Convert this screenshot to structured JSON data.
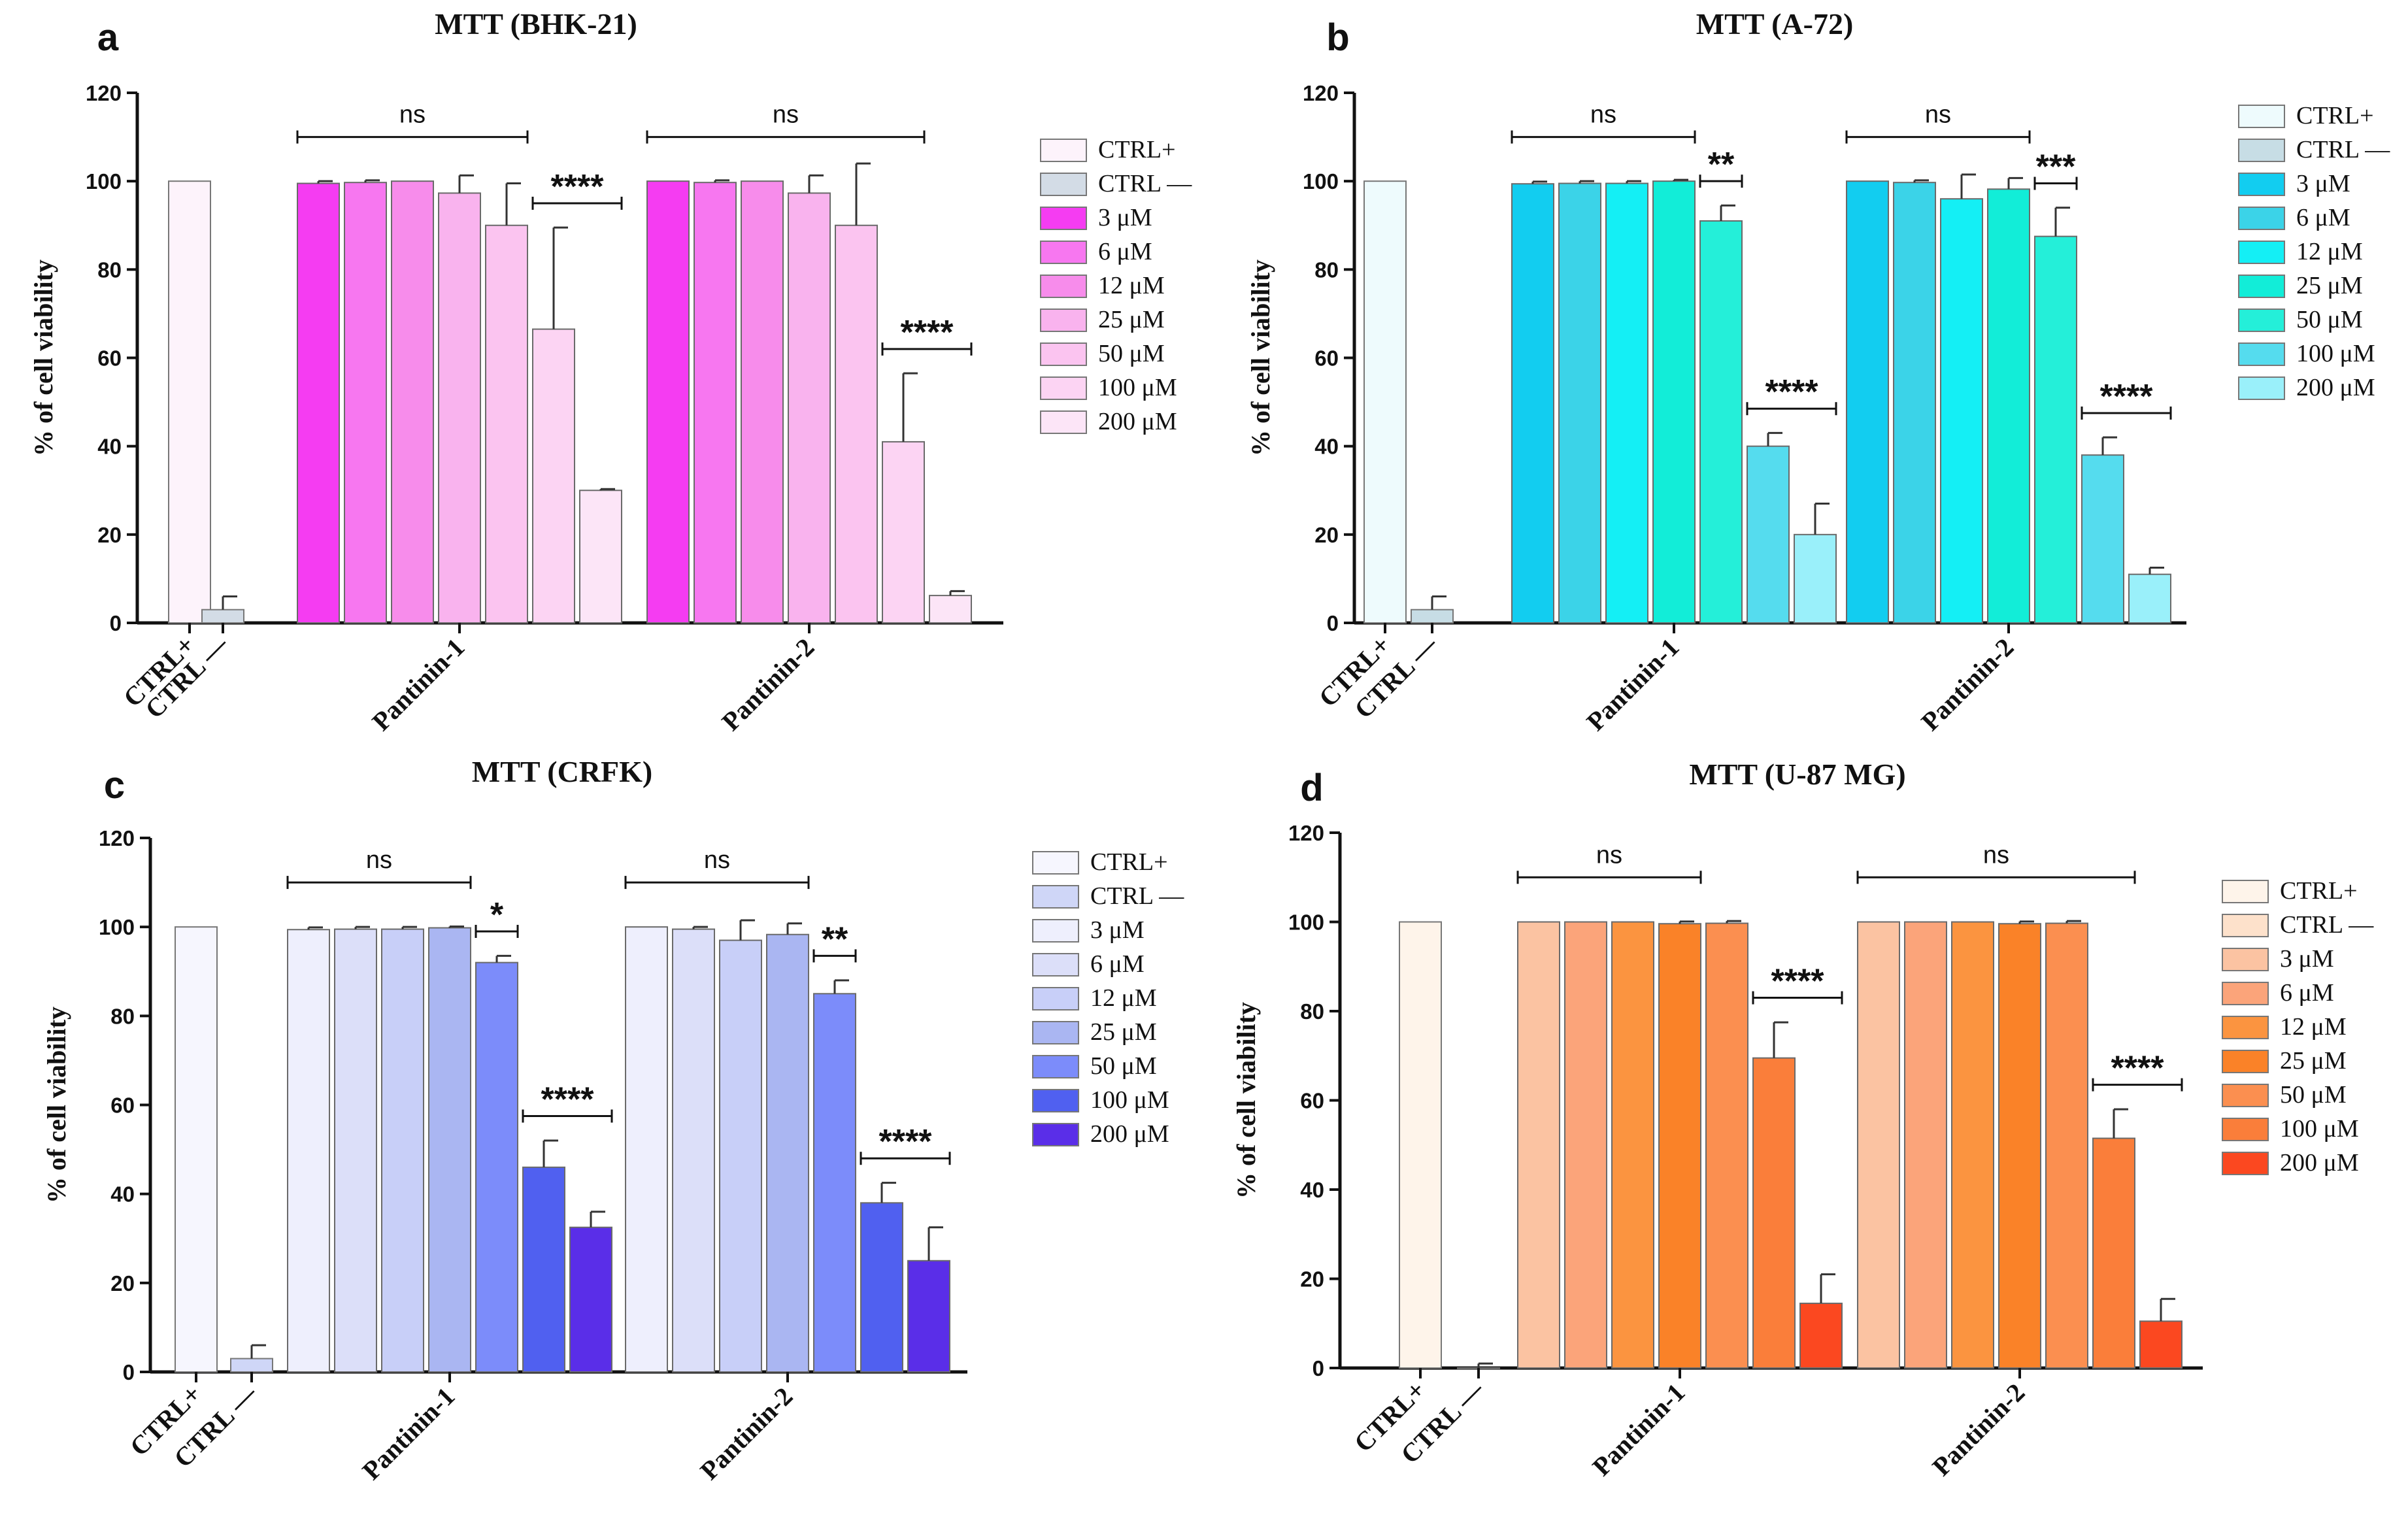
{
  "chart_data": [
    {
      "panel": "a",
      "type": "bar",
      "title": "MTT (BHK-21)",
      "ylabel": "% of cell viability",
      "ylim": [
        0,
        120
      ],
      "yticks": [
        0,
        20,
        40,
        60,
        80,
        100,
        120
      ],
      "controls": [
        {
          "name": "CTRL+",
          "value": 100,
          "error": 0
        },
        {
          "name": "CTRL —",
          "value": 3,
          "error": 3
        }
      ],
      "groups": [
        {
          "name": "Pantinin-1",
          "values": [
            99.5,
            99.7,
            100,
            97.3,
            90,
            66.5,
            30
          ],
          "errors": [
            0.5,
            0.5,
            0,
            4,
            9.5,
            23,
            0.3
          ]
        },
        {
          "name": "Pantinin-2",
          "values": [
            100,
            99.7,
            100,
            97.3,
            90,
            41,
            6.2
          ],
          "errors": [
            0,
            0.5,
            0,
            4,
            14,
            15.5,
            1
          ]
        }
      ],
      "legend": [
        "CTRL+",
        "CTRL —",
        "3 μM",
        "6 μM",
        "12 μM",
        "25 μM",
        "50 μM",
        "100 μM",
        "200 μM"
      ],
      "colors": [
        "#fdf3fb",
        "#d3dce6",
        "#f53cf2",
        "#f777f0",
        "#f78ceb",
        "#f9b3ee",
        "#fbc4f0",
        "#fcd4f3",
        "#fce5f7"
      ],
      "annotations": [
        {
          "text": "ns",
          "group": 0,
          "from": 0,
          "to": 4
        },
        {
          "text": "****",
          "group": 0,
          "from": 5,
          "to": 6
        },
        {
          "text": "ns",
          "group": 1,
          "from": 0,
          "to": 5
        },
        {
          "text": "****",
          "group": 1,
          "from": 5,
          "to": 6
        }
      ]
    },
    {
      "panel": "b",
      "type": "bar",
      "title": "MTT (A-72)",
      "ylabel": "% of cell viability",
      "ylim": [
        0,
        120
      ],
      "yticks": [
        0,
        20,
        40,
        60,
        80,
        100,
        120
      ],
      "controls": [
        {
          "name": "CTRL+",
          "value": 100,
          "error": 0
        },
        {
          "name": "CTRL —",
          "value": 3,
          "error": 3
        }
      ],
      "groups": [
        {
          "name": "Pantinin-1",
          "values": [
            99.4,
            99.5,
            99.5,
            100,
            91,
            40,
            20
          ],
          "errors": [
            0.5,
            0.5,
            0.5,
            0.3,
            3.5,
            3,
            7
          ]
        },
        {
          "name": "Pantinin-2",
          "values": [
            100,
            99.7,
            96,
            98.2,
            87.5,
            38,
            11
          ],
          "errors": [
            0,
            0.5,
            5.5,
            2.5,
            6.5,
            4,
            1.5
          ]
        }
      ],
      "legend": [
        "CTRL+",
        "CTRL —",
        "3 μM",
        "6 μM",
        "12 μM",
        "25 μM",
        "50 μM",
        "100 μM",
        "200 μM"
      ],
      "colors": [
        "#eefbfd",
        "#c7dde5",
        "#12cdf0",
        "#3bd3e8",
        "#14eff5",
        "#12edd8",
        "#24efd9",
        "#55dcee",
        "#9af0fa"
      ],
      "annotations": [
        {
          "text": "ns",
          "group": 0,
          "from": 0,
          "to": 3
        },
        {
          "text": "**",
          "group": 0,
          "from": 4,
          "to": 4
        },
        {
          "text": "****",
          "group": 0,
          "from": 5,
          "to": 6
        },
        {
          "text": "ns",
          "group": 1,
          "from": 0,
          "to": 3
        },
        {
          "text": "***",
          "group": 1,
          "from": 4,
          "to": 4
        },
        {
          "text": "****",
          "group": 1,
          "from": 5,
          "to": 6
        }
      ]
    },
    {
      "panel": "c",
      "type": "bar",
      "title": "MTT (CRFK)",
      "ylabel": "% of cell viability",
      "ylim": [
        0,
        120
      ],
      "yticks": [
        0,
        20,
        40,
        60,
        80,
        100,
        120
      ],
      "controls": [
        {
          "name": "CTRL+",
          "value": 100,
          "error": 0
        },
        {
          "name": "CTRL —",
          "value": 3,
          "error": 3
        }
      ],
      "groups": [
        {
          "name": "Pantinin-1",
          "values": [
            99.4,
            99.5,
            99.5,
            99.8,
            92,
            46,
            32.5
          ],
          "errors": [
            0.5,
            0.5,
            0.5,
            0.3,
            1.5,
            6,
            3.5
          ]
        },
        {
          "name": "Pantinin-2",
          "values": [
            100,
            99.5,
            97,
            98.3,
            85,
            38,
            25
          ],
          "errors": [
            0,
            0.5,
            4.5,
            2.5,
            3,
            4.5,
            7.5
          ]
        }
      ],
      "legend": [
        "CTRL+",
        "CTRL —",
        "3 μM",
        "6 μM",
        "12 μM",
        "25 μM",
        "50 μM",
        "100 μM",
        "200 μM"
      ],
      "colors": [
        "#f6f6fe",
        "#cfd6f7",
        "#eeeffd",
        "#dcdff9",
        "#c8cff8",
        "#aab6f2",
        "#7c8cfa",
        "#5060f0",
        "#5a2ee8"
      ],
      "annotations": [
        {
          "text": "ns",
          "group": 0,
          "from": 0,
          "to": 3
        },
        {
          "text": "*",
          "group": 0,
          "from": 4,
          "to": 4
        },
        {
          "text": "****",
          "group": 0,
          "from": 5,
          "to": 6
        },
        {
          "text": "ns",
          "group": 1,
          "from": 0,
          "to": 3
        },
        {
          "text": "**",
          "group": 1,
          "from": 4,
          "to": 4
        },
        {
          "text": "****",
          "group": 1,
          "from": 5,
          "to": 6
        }
      ]
    },
    {
      "panel": "d",
      "type": "bar",
      "title": "MTT (U-87 MG)",
      "ylabel": "% of cell viability",
      "ylim": [
        0,
        120
      ],
      "yticks": [
        0,
        20,
        40,
        60,
        80,
        100,
        120
      ],
      "controls": [
        {
          "name": "CTRL+",
          "value": 100,
          "error": 0
        },
        {
          "name": "CTRL —",
          "value": 0,
          "error": 1
        }
      ],
      "groups": [
        {
          "name": "Pantinin-1",
          "values": [
            100,
            100,
            100,
            99.6,
            99.7,
            69.5,
            14.5
          ],
          "errors": [
            0,
            0,
            0,
            0.5,
            0.5,
            8,
            6.5
          ]
        },
        {
          "name": "Pantinin-2",
          "values": [
            100,
            100,
            100,
            99.6,
            99.7,
            51.5,
            10.5
          ],
          "errors": [
            0,
            0,
            0,
            0.5,
            0.5,
            6.5,
            5
          ]
        }
      ],
      "legend": [
        "CTRL+",
        "CTRL —",
        "3 μM",
        "6 μM",
        "12 μM",
        "25 μM",
        "50 μM",
        "100 μM",
        "200 μM"
      ],
      "colors": [
        "#fef4ea",
        "#fde1cb",
        "#fbc3a2",
        "#fba47a",
        "#fb9440",
        "#fa8228",
        "#fb8f50",
        "#fa7e3a",
        "#fb4820"
      ],
      "annotations": [
        {
          "text": "ns",
          "group": 0,
          "from": 0,
          "to": 3
        },
        {
          "text": "****",
          "group": 0,
          "from": 5,
          "to": 6
        },
        {
          "text": "ns",
          "group": 1,
          "from": 0,
          "to": 5
        },
        {
          "text": "****",
          "group": 1,
          "from": 5,
          "to": 6
        }
      ]
    }
  ]
}
